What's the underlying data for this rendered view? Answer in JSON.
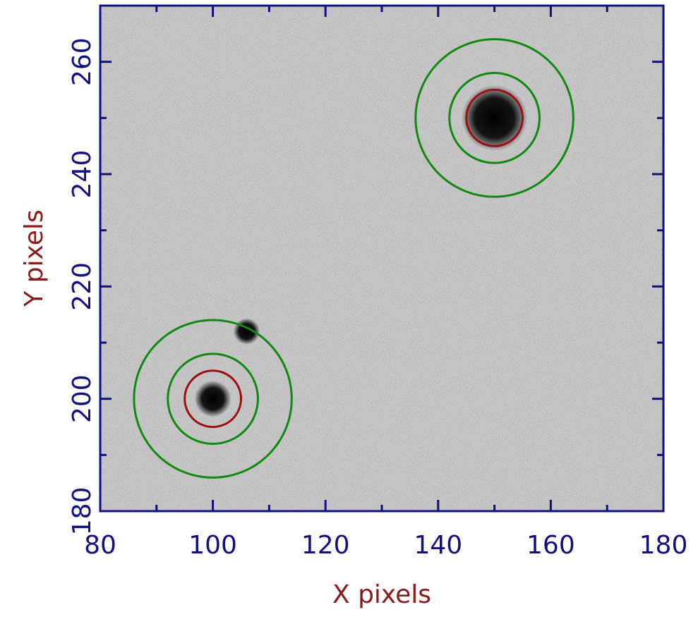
{
  "chart_data": {
    "type": "image",
    "x_label": "X pixels",
    "y_label": "Y pixels",
    "xlim": [
      80,
      180
    ],
    "ylim": [
      180,
      270
    ],
    "xticks": [
      80,
      100,
      120,
      140,
      160,
      180
    ],
    "yticks": [
      180,
      200,
      220,
      240,
      260
    ],
    "xminorticks": [
      90,
      110,
      130,
      150,
      170
    ],
    "yminorticks": [
      190,
      210,
      230,
      250
    ],
    "sources": [
      {
        "x": 150,
        "y": 250,
        "size": 4.5
      },
      {
        "x": 100,
        "y": 200,
        "size": 2.5
      },
      {
        "x": 106,
        "y": 212,
        "size": 1.8
      }
    ],
    "apertures": [
      {
        "x": 150,
        "y": 250,
        "radii": [
          5,
          8,
          14
        ]
      },
      {
        "x": 100,
        "y": 200,
        "radii": [
          5,
          8,
          14
        ]
      }
    ],
    "ring_colors": [
      "#9b1010",
      "#108a10",
      "#108a10"
    ],
    "axis_color": "#101080",
    "label_color": "#8b1a1a"
  }
}
